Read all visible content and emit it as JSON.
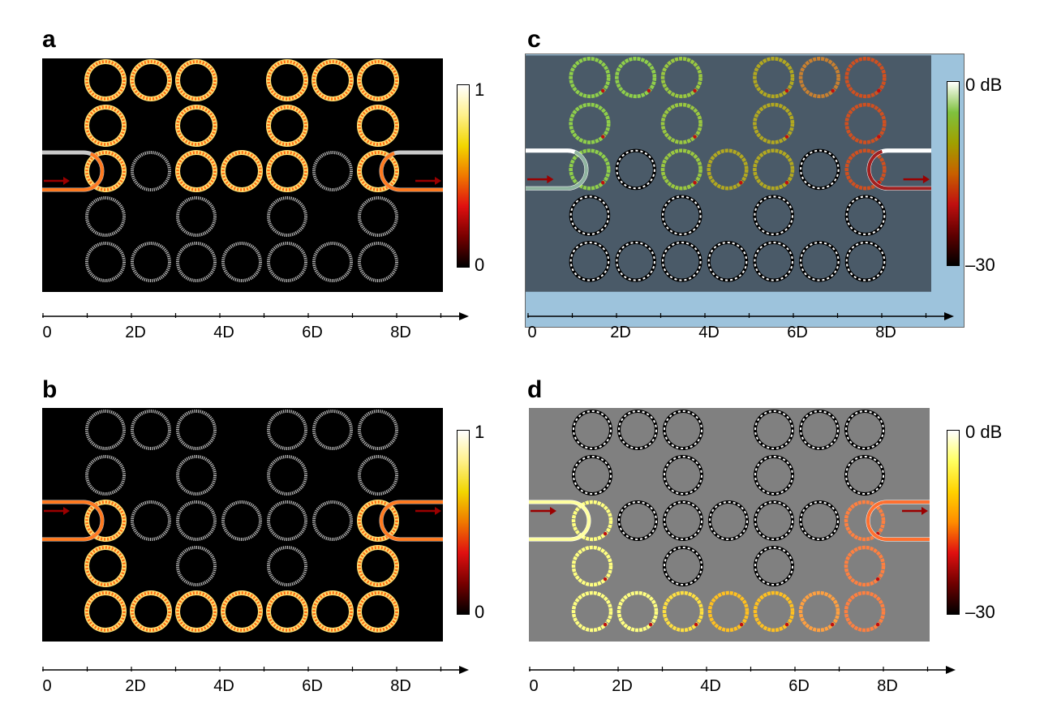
{
  "panels": [
    {
      "letter": "a",
      "style": "heat",
      "colorbar": {
        "top_label": "1",
        "bottom_label": "0",
        "stops": [
          "#ffffff",
          "#fff08a",
          "#f2d600",
          "#f07800",
          "#e01010",
          "#780000",
          "#000000"
        ]
      },
      "background": "#000000",
      "lit_path": "upper",
      "axis_ticks": [
        "0",
        "2D",
        "4D",
        "6D",
        "8D"
      ]
    },
    {
      "letter": "b",
      "style": "heat",
      "colorbar": {
        "top_label": "1",
        "bottom_label": "0",
        "stops": [
          "#ffffff",
          "#fff08a",
          "#f2d600",
          "#f07800",
          "#e01010",
          "#780000",
          "#000000"
        ]
      },
      "background": "#000000",
      "lit_path": "lower",
      "axis_ticks": [
        "0",
        "2D",
        "4D",
        "6D",
        "8D"
      ]
    },
    {
      "letter": "c",
      "style": "db",
      "colorbar": {
        "top_label": "0 dB",
        "bottom_label": "–30",
        "stops": [
          "#ffffff",
          "#7fc13e",
          "#a0a000",
          "#c86000",
          "#c01010",
          "#600000",
          "#000000"
        ]
      },
      "background": "#4a5a68",
      "frame_color": "#9dc3dc",
      "lit_path": "upper",
      "axis_ticks": [
        "0",
        "2D",
        "4D",
        "6D",
        "8D"
      ]
    },
    {
      "letter": "d",
      "style": "db",
      "colorbar": {
        "top_label": "0 dB",
        "bottom_label": "–30",
        "stops": [
          "#ffffff",
          "#ffff60",
          "#ffd200",
          "#ff8c00",
          "#e01010",
          "#700000",
          "#000000"
        ]
      },
      "background": "#808080",
      "lit_path": "lower",
      "axis_ticks": [
        "0",
        "2D",
        "4D",
        "6D",
        "8D"
      ]
    }
  ],
  "lattice": {
    "rows": [
      [
        1,
        1,
        1,
        0,
        1,
        1,
        1
      ],
      [
        1,
        0,
        1,
        0,
        1,
        0,
        1
      ],
      [
        1,
        1,
        1,
        1,
        1,
        1,
        1
      ],
      [
        1,
        0,
        1,
        0,
        1,
        0,
        1
      ],
      [
        1,
        1,
        1,
        1,
        1,
        1,
        1
      ]
    ],
    "arrow_color": "#9b0000"
  }
}
